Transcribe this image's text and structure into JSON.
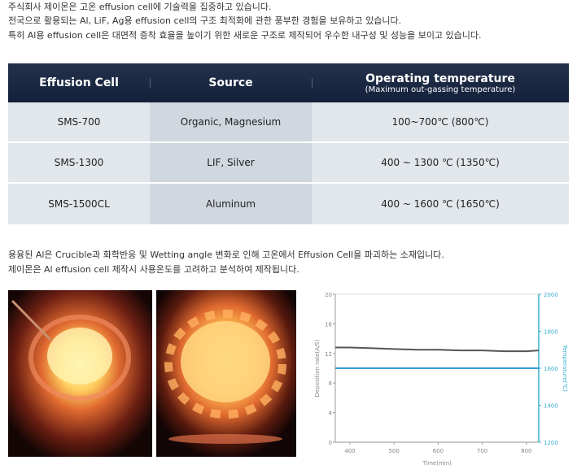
{
  "intro": [
    "주식회사 제이몬은 고온 effusion cell에 기술력을 집중하고 있습니다.",
    "전국으로 활용되는 Al, LiF, Ag용 effusion cell의 구조 최적화에 관한 풍부한 경험을 보유하고 있습니다.",
    "특히 Al용 effusion cell은 대면적 증착 효율을 높이기 위한 새로운 구조로 제작되어 우수한 내구성 및 성능을 보이고 있습니다."
  ],
  "table": {
    "headers": [
      "Effusion Cell",
      "Source",
      "Operating temperature"
    ],
    "header_note": "(Maximum out-gassing temperature)",
    "rows": [
      [
        "SMS-700",
        "Organic, Magnesium",
        "100~700℃ (800℃)"
      ],
      [
        "SMS-1300",
        "LIF, Silver",
        "400 ~ 1300 ℃ (1350℃)"
      ],
      [
        "SMS-1500CL",
        "Aluminum",
        "400 ~ 1600 ℃ (1650℃)"
      ]
    ]
  },
  "notes": [
    "용융된 Al은 Crucible과 화학반응 및 Wetting angle 변화로 인해 고온에서 Effusion Cell을 파괴하는 소재입니다.",
    "제이몬은 Al effusion cell 제작시 사용온도를 고려하고 분석하여 제작됩니다."
  ],
  "chart_data": {
    "type": "line",
    "x_label": "Time(min)",
    "y_label": "Deposition rate(A/S)",
    "y2_label": "Temperature(℃)",
    "x": [
      367,
      400,
      450,
      500,
      550,
      600,
      650,
      700,
      750,
      800,
      828
    ],
    "xlim": [
      367,
      828
    ],
    "xticks": [
      400,
      500,
      600,
      700,
      800
    ],
    "ylim": [
      0,
      20
    ],
    "yticks": [
      0,
      4,
      8,
      12,
      16,
      20
    ],
    "y2lim": [
      1200,
      2000
    ],
    "y2ticks": [
      1200,
      1400,
      1600,
      1800,
      2000
    ],
    "series": [
      {
        "name": "Deposition rate",
        "color": "#555555",
        "values": [
          12.8,
          12.8,
          12.7,
          12.6,
          12.5,
          12.5,
          12.4,
          12.4,
          12.3,
          12.3,
          12.4
        ]
      },
      {
        "name": "Temperature",
        "color": "#1e8fd0",
        "axis": "y2",
        "values": [
          1600,
          1600,
          1600,
          1600,
          1600,
          1600,
          1600,
          1600,
          1600,
          1600,
          1600
        ]
      }
    ]
  }
}
